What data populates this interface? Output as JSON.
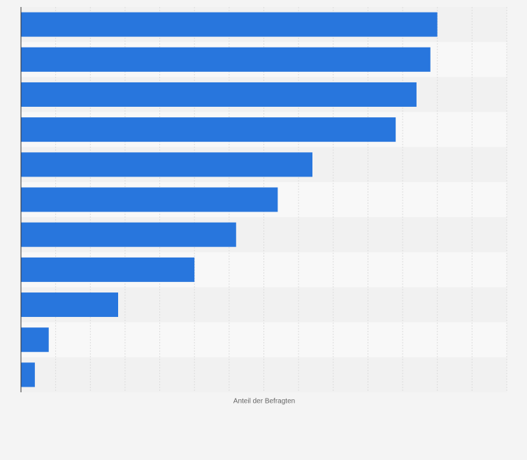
{
  "chart_data": {
    "type": "bar",
    "orientation": "horizontal",
    "x_label": "Anteil der Befragten",
    "categories": [
      null,
      null,
      null,
      null,
      null,
      null,
      null,
      null,
      null,
      null,
      null
    ],
    "values": [
      60,
      59,
      57,
      54,
      42,
      37,
      31,
      25,
      14,
      4,
      2
    ],
    "color": "#2876dd",
    "xlim": [
      0,
      70
    ],
    "xticks": [
      0,
      5,
      10,
      15,
      20,
      25,
      30,
      35,
      40,
      45,
      50,
      55,
      60,
      65,
      70
    ],
    "grid": true
  }
}
